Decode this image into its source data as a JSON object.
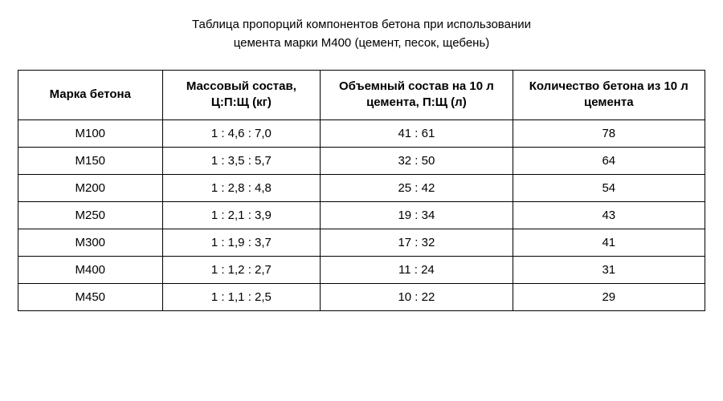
{
  "title_line1": "Таблица пропорций компонентов бетона при использовании",
  "title_line2": "цемента марки М400 (цемент, песок, щебень)",
  "table": {
    "type": "table",
    "background_color": "#ffffff",
    "border_color": "#000000",
    "text_color": "#000000",
    "header_fontsize": 15,
    "cell_fontsize": 15,
    "font_family": "Verdana",
    "columns": [
      {
        "label": "Марка бетона",
        "width_pct": 21,
        "align": "center"
      },
      {
        "label": "Массовый состав, Ц:П:Щ (кг)",
        "width_pct": 23,
        "align": "center"
      },
      {
        "label": "Объемный состав на 10 л цемента, П:Щ (л)",
        "width_pct": 28,
        "align": "center"
      },
      {
        "label": "Количество бетона из 10 л цемента",
        "width_pct": 28,
        "align": "center"
      }
    ],
    "rows": [
      [
        "М100",
        "1 : 4,6 : 7,0",
        "41 : 61",
        "78"
      ],
      [
        "М150",
        "1 : 3,5 : 5,7",
        "32 : 50",
        "64"
      ],
      [
        "М200",
        "1 : 2,8 : 4,8",
        "25 : 42",
        "54"
      ],
      [
        "М250",
        "1 : 2,1 : 3,9",
        "19 : 34",
        "43"
      ],
      [
        "М300",
        "1 : 1,9 : 3,7",
        "17 : 32",
        "41"
      ],
      [
        "М400",
        "1 : 1,2 : 2,7",
        "11 : 24",
        "31"
      ],
      [
        "М450",
        "1 : 1,1 : 2,5",
        "10 : 22",
        "29"
      ]
    ]
  }
}
